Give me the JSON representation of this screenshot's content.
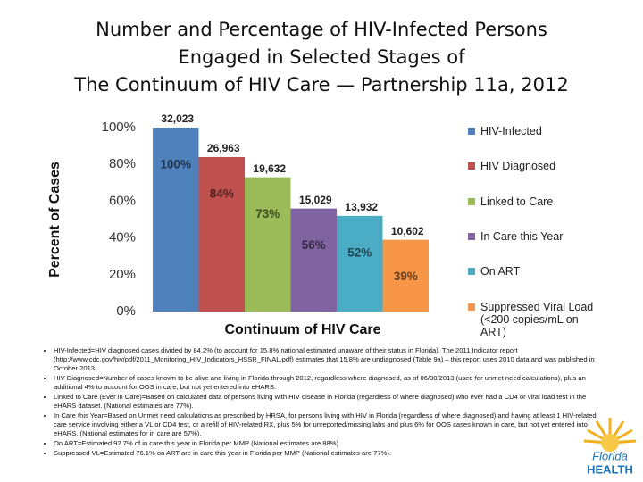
{
  "title": [
    "Number and Percentage of HIV-Infected Persons",
    "Engaged in Selected Stages of",
    "The Continuum of HIV Care — Partnership 11a, 2012"
  ],
  "chart_data": {
    "type": "bar",
    "x_label": "Continuum of HIV Care",
    "y_label": "Percent of Cases",
    "ylim": [
      0,
      100
    ],
    "yticks": [
      {
        "value": 0,
        "label": "0%"
      },
      {
        "value": 20,
        "label": "20%"
      },
      {
        "value": 40,
        "label": "40%"
      },
      {
        "value": 60,
        "label": "60%"
      },
      {
        "value": 80,
        "label": "80%"
      },
      {
        "value": 100,
        "label": "100%"
      }
    ],
    "grid": false,
    "legend": "right",
    "series": [
      {
        "name": "HIV-Infected",
        "color": "#4f81bd",
        "values": [
          100
        ],
        "value_labels": [
          "100%"
        ],
        "count": 32023,
        "count_label": "32,023"
      },
      {
        "name": "HIV Diagnosed",
        "color": "#c0504d",
        "values": [
          84
        ],
        "value_labels": [
          "84%"
        ],
        "count": 26963,
        "count_label": "26,963"
      },
      {
        "name": "Linked to Care",
        "color": "#9bbb59",
        "values": [
          73
        ],
        "value_labels": [
          "73%"
        ],
        "count": 19632,
        "count_label": "19,632"
      },
      {
        "name": "In Care this Year",
        "color": "#8064a2",
        "values": [
          56
        ],
        "value_labels": [
          "56%"
        ],
        "count": 15029,
        "count_label": "15,029"
      },
      {
        "name": "On ART",
        "color": "#4bacc6",
        "values": [
          52
        ],
        "value_labels": [
          "52%"
        ],
        "count": 13932,
        "count_label": "13,932"
      },
      {
        "name": "Suppressed Viral Load (<200 copies/mL on ART)",
        "color": "#f79646",
        "values": [
          39
        ],
        "value_labels": [
          "39%"
        ],
        "count": 10602,
        "count_label": "10,602"
      }
    ]
  },
  "notes": [
    "HIV-Infected=HIV diagnosed cases divided by 84.2% (to account for 15.8% national estimated unaware of their status in Florida). The 2011 Indicator report (http://www.cdc.gov/hiv/pdf/2011_Monitoring_HIV_Indicators_HSSR_FINAL.pdf) estimates that 15.8% are undiagnosed (Table 9a) – this report uses 2010 data and was published in October 2013.",
    "HIV Diagnosed=Number of cases known to be alive and living in Florida through 2012, regardless where diagnosed, as of 06/30/2013 (used for unmet need calculations), plus an additional 4% to account for OOS in care, but not yet entered into eHARS.",
    "Linked to Care (Ever in Care)=Based on calculated data of persons living with HIV disease in Florida (regardless of where diagnosed) who ever had a CD4 or viral load test in the eHARS dataset. (National estimates are 77%).",
    "In Care this Year=Based on Unmet need calculations as prescribed by HRSA, for persons living with HIV in Florida (regardless of where diagnosed) and having at least 1 HIV-related care service involving either a VL or CD4 test, or a refill of HIV-related RX, plus 5% for unreported/missing labs and plus 6% for OOS cases known in care, but not yet entered into eHARS. (National estimates for in care are 57%).",
    "On ART=Estimated 92.7% of in care this year in Florida per MMP (National estimates are 88%)",
    "Suppressed VL=Estimated 76.1% on ART are in care this year in Florida per MMP (National estimates are 77%)."
  ],
  "logo": {
    "line1": "Florida",
    "line2": "HEALTH"
  }
}
